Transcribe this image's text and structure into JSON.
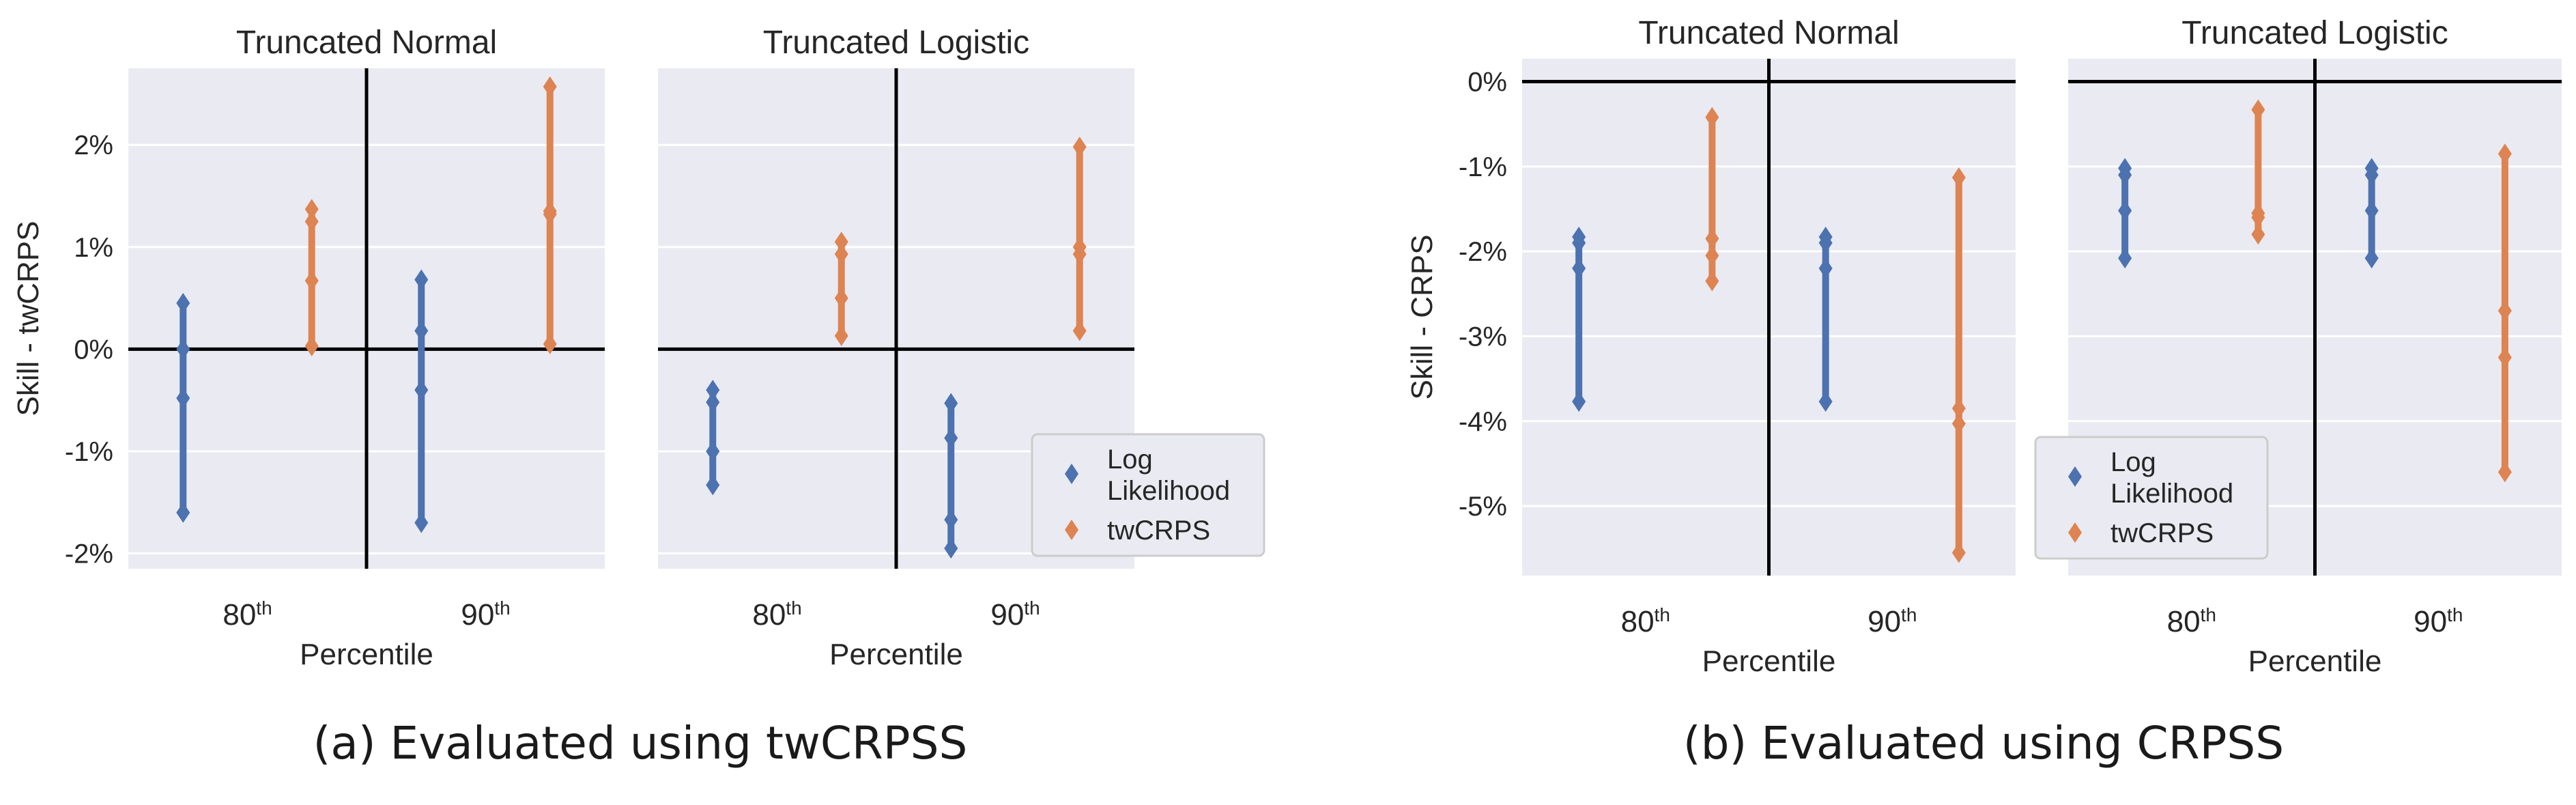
{
  "captions": {
    "a": "(a) Evaluated using twCRPSS",
    "b": "(b) Evaluated using CRPSS"
  },
  "colors": {
    "log_likelihood": "#4c72b0",
    "twcrps": "#dd8452",
    "panel_background": "#eaeaf2",
    "grid": "#ffffff",
    "reference_lines": "#000000"
  },
  "chart_data": [
    {
      "type": "scatter",
      "group": "a",
      "title": "Truncated Normal",
      "xlabel": "Percentile",
      "ylabel": "Skill - twCRPS",
      "categories": [
        "80",
        "90"
      ],
      "category_suffix": "th",
      "ylim": [
        -2.15,
        2.75
      ],
      "yticks": [
        -2,
        -1,
        0,
        1,
        2
      ],
      "ytick_labels": [
        "-2%",
        "-1%",
        "0%",
        "1%",
        "2%"
      ],
      "grid": true,
      "hline": 0,
      "vline_between_categories": true,
      "series": [
        {
          "name": "Log Likelihood",
          "color": "#4c72b0",
          "points": [
            [
              -1.6,
              -0.48,
              0.0,
              0.45
            ],
            [
              -1.7,
              -0.4,
              0.18,
              0.68
            ]
          ]
        },
        {
          "name": "twCRPS",
          "color": "#dd8452",
          "points": [
            [
              0.03,
              0.67,
              1.25,
              1.37
            ],
            [
              0.05,
              1.32,
              1.35,
              2.57
            ]
          ]
        }
      ],
      "legend": null
    },
    {
      "type": "scatter",
      "group": "a",
      "title": "Truncated Logistic",
      "xlabel": "Percentile",
      "ylabel": "",
      "categories": [
        "80",
        "90"
      ],
      "category_suffix": "th",
      "ylim": [
        -2.15,
        2.75
      ],
      "yticks": [
        -2,
        -1,
        0,
        1,
        2
      ],
      "ytick_labels": [],
      "grid": true,
      "hline": 0,
      "vline_between_categories": true,
      "series": [
        {
          "name": "Log Likelihood",
          "color": "#4c72b0",
          "points": [
            [
              -1.33,
              -1.0,
              -0.52,
              -0.4
            ],
            [
              -1.95,
              -1.67,
              -0.87,
              -0.53
            ]
          ]
        },
        {
          "name": "twCRPS",
          "color": "#dd8452",
          "points": [
            [
              0.13,
              0.5,
              0.93,
              1.05
            ],
            [
              0.18,
              0.93,
              1.0,
              1.98
            ]
          ]
        }
      ],
      "legend": {
        "position": "lower-right",
        "entries": [
          "Log\nLikelihood",
          "twCRPS"
        ]
      }
    },
    {
      "type": "scatter",
      "group": "b",
      "title": "Truncated Normal",
      "xlabel": "Percentile",
      "ylabel": "Skill - CRPS",
      "categories": [
        "80",
        "90"
      ],
      "category_suffix": "th",
      "ylim": [
        -5.82,
        0.27
      ],
      "yticks": [
        0,
        -1,
        -2,
        -3,
        -4,
        -5
      ],
      "ytick_labels": [
        "0%",
        "-1%",
        "-2%",
        "-3%",
        "-4%",
        "-5%"
      ],
      "grid": true,
      "hline": 0,
      "vline_between_categories": true,
      "series": [
        {
          "name": "Log Likelihood",
          "color": "#4c72b0",
          "points": [
            [
              -3.77,
              -2.2,
              -1.9,
              -1.83
            ],
            [
              -3.77,
              -2.2,
              -1.9,
              -1.83
            ]
          ]
        },
        {
          "name": "twCRPS",
          "color": "#dd8452",
          "points": [
            [
              -2.35,
              -2.05,
              -1.85,
              -0.42
            ],
            [
              -5.55,
              -4.03,
              -3.85,
              -1.13
            ]
          ]
        }
      ],
      "legend": null
    },
    {
      "type": "scatter",
      "group": "b",
      "title": "Truncated Logistic",
      "xlabel": "Percentile",
      "ylabel": "",
      "categories": [
        "80",
        "90"
      ],
      "category_suffix": "th",
      "ylim": [
        -5.82,
        0.27
      ],
      "yticks": [
        0,
        -1,
        -2,
        -3,
        -4,
        -5
      ],
      "ytick_labels": [],
      "grid": true,
      "hline": 0,
      "vline_between_categories": true,
      "series": [
        {
          "name": "Log Likelihood",
          "color": "#4c72b0",
          "points": [
            [
              -2.08,
              -1.52,
              -1.1,
              -1.02
            ],
            [
              -2.08,
              -1.52,
              -1.1,
              -1.02
            ]
          ]
        },
        {
          "name": "twCRPS",
          "color": "#dd8452",
          "points": [
            [
              -1.8,
              -1.6,
              -1.55,
              -0.33
            ],
            [
              -4.6,
              -3.25,
              -2.7,
              -0.85
            ]
          ]
        }
      ],
      "legend": {
        "position": "lower-left",
        "entries": [
          "Log\nLikelihood",
          "twCRPS"
        ]
      }
    }
  ]
}
